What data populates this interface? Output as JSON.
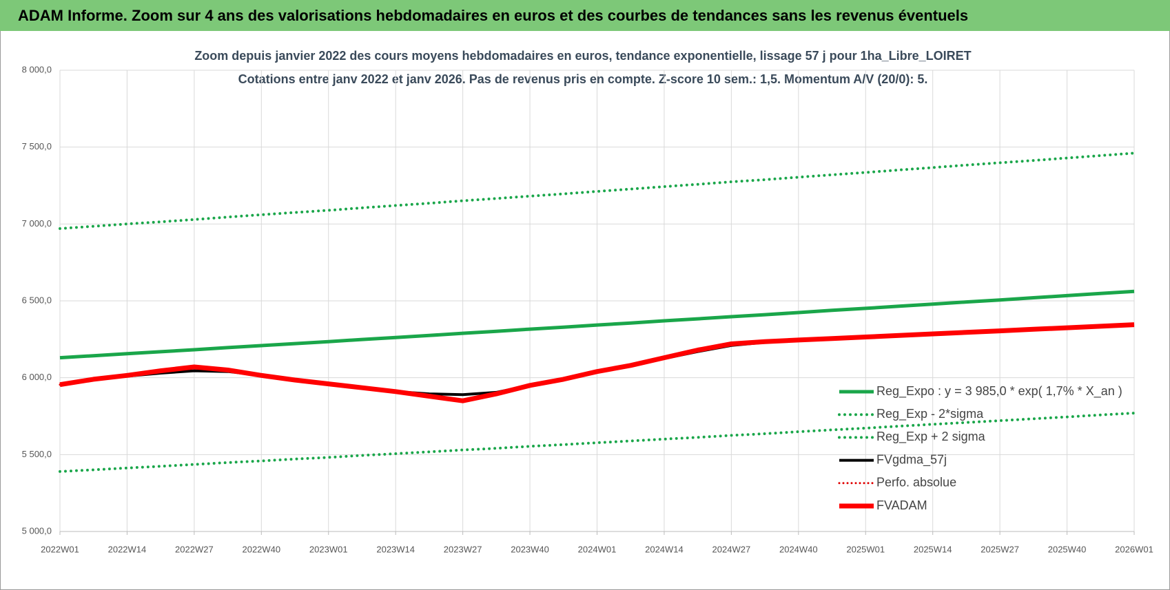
{
  "header": {
    "title": "ADAM Informe. Zoom sur 4 ans des valorisations hebdomadaires en euros et des courbes de tendances sans les revenus éventuels"
  },
  "chart_data": {
    "type": "line",
    "title": "Zoom depuis janvier 2022 des cours moyens hebdomadaires en euros, tendance exponentielle, lissage 57 j pour 1ha_Libre_LOIRET",
    "subtitle": "Cotations entre janv 2022 et janv 2026. Pas de revenus pris en compte. Z-score 10 sem.: 1,5. Momentum A/V (20/0): 5.",
    "categories": [
      "2022W01",
      null,
      "2022W14",
      null,
      "2022W27",
      null,
      "2022W40",
      null,
      "2023W01",
      null,
      "2023W14",
      null,
      "2023W27",
      null,
      "2023W40",
      null,
      "2024W01",
      null,
      "2024W14",
      null,
      "2024W27",
      null,
      "2024W40",
      null,
      "2025W01",
      null,
      "2025W14",
      null,
      "2025W27",
      null,
      "2025W40",
      null,
      "2026W01"
    ],
    "series": [
      {
        "name": "Reg_Expo : y = 3 985,0 * exp( 1,7% *  X_an )",
        "color": "#1aa64a",
        "style": "solid",
        "values": [
          6130,
          6143,
          6156,
          6169,
          6182,
          6196,
          6209,
          6222,
          6235,
          6249,
          6262,
          6275,
          6289,
          6302,
          6316,
          6329,
          6343,
          6356,
          6370,
          6383,
          6397,
          6410,
          6424,
          6438,
          6451,
          6465,
          6479,
          6493,
          6506,
          6520,
          6534,
          6548,
          6562
        ]
      },
      {
        "name": "Reg_Exp - 2*sigma",
        "color": "#1aa64a",
        "style": "dotted",
        "values": [
          5390,
          5401,
          5413,
          5424,
          5436,
          5448,
          5459,
          5471,
          5482,
          5495,
          5506,
          5518,
          5530,
          5541,
          5554,
          5565,
          5577,
          5589,
          5601,
          5612,
          5625,
          5636,
          5649,
          5661,
          5672,
          5685,
          5697,
          5709,
          5721,
          5733,
          5745,
          5758,
          5770
        ]
      },
      {
        "name": "Reg_Exp + 2 sigma",
        "color": "#1aa64a",
        "style": "dotted",
        "values": [
          6970,
          6985,
          7000,
          7014,
          7029,
          7045,
          7060,
          7075,
          7089,
          7105,
          7120,
          7135,
          7151,
          7166,
          7181,
          7196,
          7212,
          7227,
          7243,
          7258,
          7274,
          7288,
          7304,
          7320,
          7335,
          7351,
          7367,
          7383,
          7398,
          7413,
          7429,
          7445,
          7461
        ]
      },
      {
        "name": "FVgdma_57j",
        "color": "#000000",
        "style": "solid",
        "values": [
          5955,
          5990,
          6010,
          6030,
          6045,
          6040,
          6015,
          5985,
          5960,
          5935,
          5910,
          5895,
          5890,
          5905,
          5950,
          5990,
          6040,
          6080,
          6125,
          6170,
          6210,
          6230,
          6245,
          6255,
          6265,
          6275,
          6285,
          6295,
          6305,
          6315,
          6325,
          6335,
          6345
        ]
      },
      {
        "name": "Perfo. absolue",
        "color": "#e00000",
        "style": "dotted",
        "values": [
          5955,
          5990,
          6015,
          6045,
          6070,
          6050,
          6015,
          5985,
          5960,
          5935,
          5910,
          5880,
          5850,
          5895,
          5950,
          5990,
          6040,
          6080,
          6130,
          6180,
          6220,
          6235,
          6245,
          6255,
          6265,
          6275,
          6285,
          6295,
          6305,
          6315,
          6325,
          6335,
          6345
        ]
      },
      {
        "name": "FVADAM",
        "color": "#ff0000",
        "style": "solid",
        "values": [
          5955,
          5990,
          6015,
          6045,
          6070,
          6050,
          6015,
          5985,
          5960,
          5935,
          5910,
          5880,
          5850,
          5895,
          5950,
          5990,
          6040,
          6080,
          6130,
          6180,
          6220,
          6235,
          6245,
          6255,
          6265,
          6275,
          6285,
          6295,
          6305,
          6315,
          6325,
          6335,
          6345
        ]
      }
    ],
    "ylim": [
      5000,
      8000
    ],
    "yticks": [
      {
        "value": 5000,
        "label": "5 000,0"
      },
      {
        "value": 5500,
        "label": "5 500,0"
      },
      {
        "value": 6000,
        "label": "6 000,0"
      },
      {
        "value": 6500,
        "label": "6 500,0"
      },
      {
        "value": 7000,
        "label": "7 000,0"
      },
      {
        "value": 7500,
        "label": "7 500,0"
      },
      {
        "value": 8000,
        "label": "8 000,0"
      }
    ],
    "grid": true,
    "legend": "lower right"
  }
}
